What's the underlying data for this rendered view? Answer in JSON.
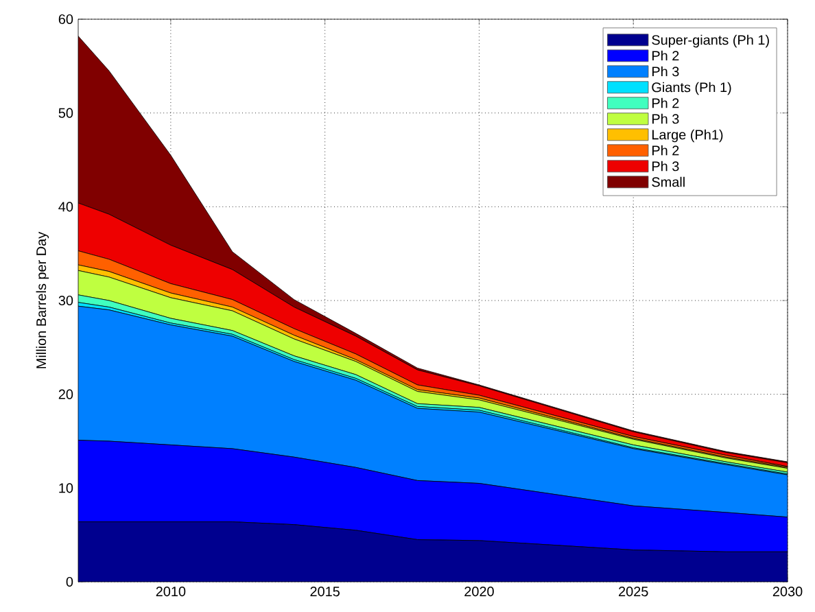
{
  "chart_data": {
    "type": "area",
    "stacked": true,
    "ylabel": "Million Barrels per Day",
    "x": [
      2007,
      2008,
      2010,
      2012,
      2014,
      2016,
      2018,
      2020,
      2025,
      2028,
      2030
    ],
    "xlim": [
      2007,
      2030
    ],
    "ylim": [
      0,
      60
    ],
    "xticks": [
      2010,
      2015,
      2020,
      2025,
      2030
    ],
    "yticks": [
      0,
      10,
      20,
      30,
      40,
      50,
      60
    ],
    "grid": true,
    "legend": "top right",
    "series": [
      {
        "name": "Super-giants (Ph 1)",
        "color": "#00008f",
        "values": [
          6.4,
          6.4,
          6.4,
          6.4,
          6.1,
          5.5,
          4.5,
          4.4,
          3.4,
          3.2,
          3.2
        ]
      },
      {
        "name": "Ph 2",
        "color": "#0000ff",
        "values": [
          8.7,
          8.6,
          8.2,
          7.8,
          7.2,
          6.7,
          6.3,
          6.1,
          4.7,
          4.2,
          3.7
        ]
      },
      {
        "name": "Ph 3",
        "color": "#0080ff",
        "values": [
          14.3,
          14.0,
          12.8,
          12.0,
          10.2,
          9.3,
          7.7,
          7.6,
          6.1,
          5.1,
          4.5
        ]
      },
      {
        "name": "Giants (Ph 1)",
        "color": "#00e0ff",
        "values": [
          0.4,
          0.3,
          0.2,
          0.2,
          0.2,
          0.2,
          0.2,
          0.2,
          0.1,
          0.1,
          0.1
        ]
      },
      {
        "name": "Ph 2",
        "color": "#40ffbf",
        "values": [
          0.8,
          0.7,
          0.5,
          0.4,
          0.4,
          0.4,
          0.3,
          0.3,
          0.3,
          0.2,
          0.2
        ]
      },
      {
        "name": "Ph 3",
        "color": "#bfff40",
        "values": [
          2.6,
          2.5,
          2.2,
          2.1,
          1.8,
          1.4,
          1.3,
          0.8,
          0.6,
          0.4,
          0.4
        ]
      },
      {
        "name": "Large (Ph1)",
        "color": "#ffbf00",
        "values": [
          0.6,
          0.6,
          0.5,
          0.4,
          0.4,
          0.2,
          0.2,
          0.2,
          0.1,
          0.1,
          0.1
        ]
      },
      {
        "name": "Ph 2",
        "color": "#ff6000",
        "values": [
          1.5,
          1.3,
          1.0,
          0.8,
          0.7,
          0.6,
          0.5,
          0.3,
          0.2,
          0.2,
          0.1
        ]
      },
      {
        "name": "Ph 3",
        "color": "#ee0000",
        "values": [
          5.1,
          4.8,
          4.1,
          3.2,
          2.3,
          1.9,
          1.6,
          1.0,
          0.5,
          0.3,
          0.4
        ]
      },
      {
        "name": "Small",
        "color": "#800000",
        "values": [
          17.8,
          15.3,
          9.6,
          1.9,
          0.8,
          0.3,
          0.2,
          0.1,
          0.1,
          0.1,
          0.1
        ]
      }
    ]
  }
}
